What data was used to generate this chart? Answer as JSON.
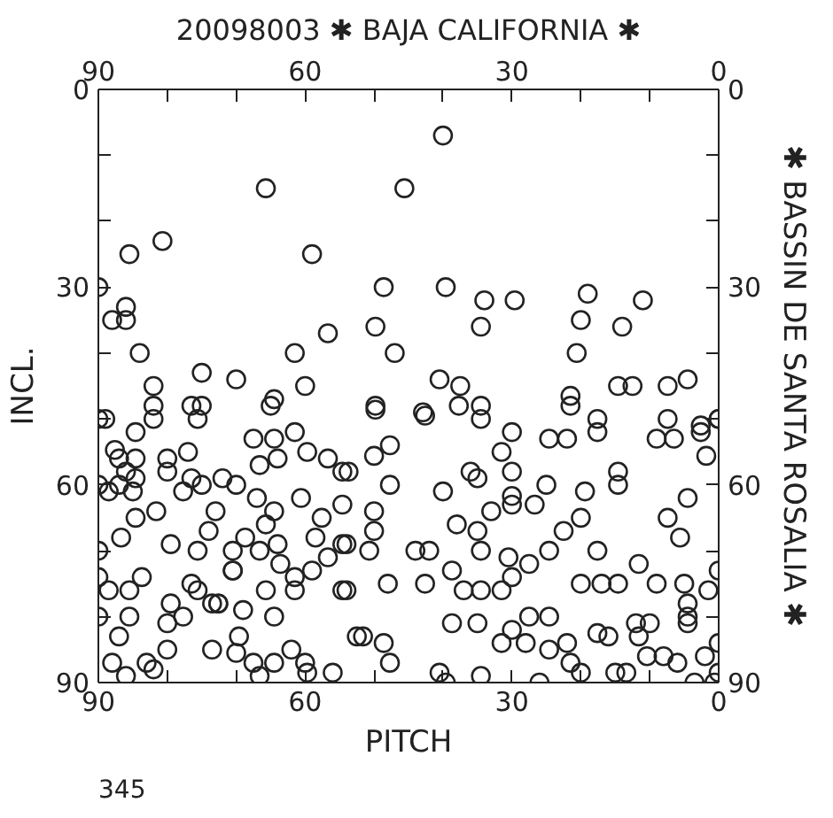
{
  "chart_data": {
    "type": "scatter",
    "title": "20098003 ✱ BAJA CALIFORNIA ✱",
    "xlabel": "PITCH",
    "ylabel": "INCL.",
    "y2label": "✱ BASSIN DE SANTA ROSALIA ✱",
    "annotations": [
      "345"
    ],
    "xlim": [
      90,
      0
    ],
    "ylim": [
      90,
      0
    ],
    "x2lim": [
      90,
      0
    ],
    "y2lim": [
      90,
      0
    ],
    "xticks": [
      90,
      {
        "value": 80,
        "label": null
      },
      {
        "value": 70,
        "label": null
      },
      60,
      {
        "value": 50,
        "label": null
      },
      {
        "value": 40,
        "label": null
      },
      30,
      {
        "value": 20,
        "label": null
      },
      {
        "value": 10,
        "label": null
      },
      0
    ],
    "x2ticks": [
      90,
      {
        "value": 80,
        "label": null
      },
      {
        "value": 70,
        "label": null
      },
      60,
      {
        "value": 50,
        "label": null
      },
      {
        "value": 40,
        "label": null
      },
      30,
      {
        "value": 20,
        "label": null
      },
      {
        "value": 10,
        "label": null
      },
      0
    ],
    "yticks": [
      0,
      {
        "value": 10,
        "label": null
      },
      {
        "value": 20,
        "label": null
      },
      30,
      {
        "value": 40,
        "label": null
      },
      {
        "value": 50,
        "label": null
      },
      60,
      {
        "value": 70,
        "label": null
      },
      {
        "value": 80,
        "label": null
      },
      90
    ],
    "y2ticks": [
      0,
      {
        "value": 10,
        "label": null
      },
      {
        "value": 20,
        "label": null
      },
      30,
      {
        "value": 40,
        "label": null
      },
      {
        "value": 50,
        "label": null
      },
      60,
      {
        "value": 70,
        "label": null
      },
      {
        "value": 80,
        "label": null
      },
      90
    ],
    "marker": "circle",
    "grid": false,
    "series": [
      {
        "color": "#222222",
        "x": [
          65.7,
          40,
          45.6,
          85.5,
          80.7,
          59,
          90,
          88,
          86,
          86,
          84,
          56.7,
          61.5,
          75,
          70,
          82,
          60,
          82,
          64.5,
          76.5,
          75,
          90,
          65,
          48.6,
          39.6,
          34,
          29.6,
          19,
          11,
          49.8,
          34.5,
          20,
          14,
          47,
          20.6,
          40.5,
          37.5,
          14.6,
          12.5,
          7.4,
          4.5,
          49.8,
          42.9,
          37.7,
          34.5,
          21.5,
          21.5,
          17.6,
          7.4,
          0,
          2.6,
          89,
          84.6,
          87.6,
          87,
          86,
          84.6,
          90,
          88.5,
          87,
          84.6,
          85,
          80,
          80,
          77,
          76.5,
          77.7,
          75,
          72,
          70,
          67.5,
          64.5,
          61.5,
          66.6,
          64,
          59.7,
          56.7,
          54.6,
          67,
          64.5,
          65.7,
          68.7,
          66.6,
          64,
          75.6,
          74,
          73,
          72.6,
          70.5,
          84.6,
          81.6,
          79.5,
          86.7,
          90,
          90,
          88.5,
          85.5,
          83.7,
          85.5,
          90,
          87,
          79.5,
          77.7,
          80,
          75.6,
          73.5,
          72.6,
          76.5,
          73.5,
          70,
          67.5,
          69.6,
          66.6,
          64.5,
          62,
          60,
          59.7,
          56,
          88,
          86,
          83,
          82,
          80,
          82,
          75.6,
          70.5,
          70.5,
          63.6,
          61.5,
          69,
          64.5,
          58.5,
          56.7,
          54.6,
          59,
          54.6,
          60.6,
          57.6,
          54.6,
          52.5,
          61.5,
          65.7,
          49.8,
          42.6,
          34.5,
          30,
          24.6,
          22,
          17.6,
          9,
          6.5,
          2.6,
          0,
          1.8,
          53.7,
          50,
          47.7,
          47.7,
          40,
          36,
          35,
          31.5,
          30,
          30,
          25,
          19.4,
          14.6,
          14.6,
          50,
          50,
          50.7,
          54,
          54,
          44,
          42,
          38,
          35,
          34.5,
          33,
          30,
          26.7,
          30.5,
          27.5,
          30,
          24.6,
          22.5,
          20,
          17.6,
          38.7,
          37,
          34.5,
          48,
          42.6,
          20,
          17,
          14.6,
          11.6,
          9,
          7.4,
          5.6,
          4.5,
          5,
          4.5,
          1.5,
          0,
          38.7,
          35,
          30,
          27.5,
          24.6,
          31.5,
          28,
          24.6,
          22,
          51.6,
          48.6,
          47.7,
          40.5,
          39.6,
          34.5,
          26,
          21.5,
          20,
          17.6,
          16,
          15,
          13.4,
          12,
          10,
          11.6,
          10.4,
          8,
          6,
          4.5,
          4.5,
          2,
          0,
          0,
          3.5,
          0.6,
          31.5
        ],
        "values": [
          15,
          7,
          15,
          25,
          23,
          25,
          30,
          35,
          33,
          35,
          40,
          37,
          40,
          43,
          44,
          45,
          45,
          48,
          47,
          48,
          48,
          50,
          48,
          30,
          30,
          32,
          32,
          31,
          32,
          36,
          36,
          35,
          36,
          40,
          40,
          44,
          45,
          45,
          45,
          45,
          44,
          48,
          49,
          48,
          48,
          46.5,
          48,
          50,
          50,
          50,
          51,
          50,
          52,
          54.7,
          56,
          58,
          56,
          60,
          61,
          60,
          59,
          61,
          56,
          58,
          55,
          59,
          61,
          60,
          59,
          60,
          53,
          53,
          52,
          57,
          56,
          55,
          56,
          58,
          62,
          64,
          66,
          68,
          70,
          69,
          70,
          67,
          64,
          78,
          73,
          65,
          64,
          69,
          68,
          70,
          74,
          76,
          76,
          74,
          80,
          80,
          83,
          78,
          80,
          81,
          76,
          78,
          78,
          75,
          85,
          85.5,
          87,
          83,
          89,
          87,
          85,
          87,
          88.5,
          88.5,
          87,
          89,
          87,
          88,
          85,
          50,
          50,
          73,
          70,
          72,
          74,
          79,
          80,
          68,
          71,
          69,
          73,
          76,
          62,
          65,
          63,
          83,
          76,
          76,
          48.6,
          49.5,
          50,
          52,
          53,
          53,
          52,
          53,
          53,
          52,
          50,
          55.6,
          58,
          55.6,
          54,
          60,
          61,
          58,
          59,
          55,
          58,
          61.7,
          60,
          61,
          58,
          60,
          64,
          67,
          70,
          69,
          76,
          70,
          70,
          66,
          67,
          70,
          64,
          63,
          63,
          71,
          72,
          74,
          70,
          67,
          65,
          70,
          73,
          76,
          76,
          75,
          75,
          75,
          75,
          75,
          72,
          75,
          65,
          68,
          62,
          75,
          78,
          76,
          73,
          81,
          81,
          82,
          80,
          80,
          84,
          84,
          85,
          84,
          83,
          84,
          87,
          88.5,
          90,
          89,
          90,
          87,
          88.5,
          82.5,
          83,
          88.5,
          88.5,
          81,
          81,
          83,
          86,
          86,
          87,
          80,
          81,
          86,
          84,
          88.5,
          90,
          90,
          76
        ]
      }
    ]
  }
}
